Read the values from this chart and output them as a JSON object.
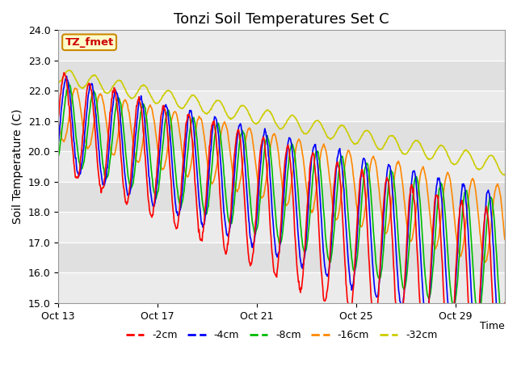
{
  "title": "Tonzi Soil Temperatures Set C",
  "ylabel": "Soil Temperature (C)",
  "xlabel": "Time",
  "annotation": "TZ_fmet",
  "ylim": [
    15.0,
    24.0
  ],
  "yticks": [
    15.0,
    16.0,
    17.0,
    18.0,
    19.0,
    20.0,
    21.0,
    22.0,
    23.0,
    24.0
  ],
  "xtick_labels": [
    "Oct 13",
    "Oct 17",
    "Oct 21",
    "Oct 25",
    "Oct 29"
  ],
  "xtick_positions": [
    0,
    4,
    8,
    12,
    16
  ],
  "series": {
    "-2cm": {
      "color": "#ff0000"
    },
    "-4cm": {
      "color": "#0000ff"
    },
    "-8cm": {
      "color": "#00bb00"
    },
    "-16cm": {
      "color": "#ff8800"
    },
    "-32cm": {
      "color": "#cccc00"
    }
  },
  "background_color": "#ffffff",
  "plot_bg_color": "#e0e0e0",
  "stripe_color": "#ebebeb",
  "title_fontsize": 13,
  "label_fontsize": 10,
  "tick_fontsize": 9,
  "legend_fontsize": 9,
  "line_width": 1.2
}
